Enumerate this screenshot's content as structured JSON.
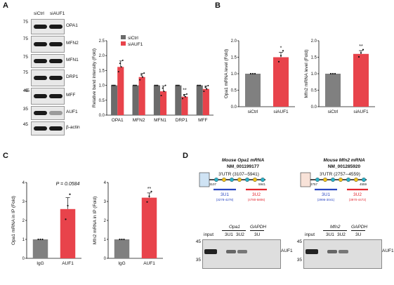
{
  "panels": {
    "A": "A",
    "B": "B",
    "C": "C",
    "D": "D"
  },
  "panelA": {
    "col_labels": [
      "siCtrl",
      "siAUF1"
    ],
    "blots": [
      {
        "mw": "75",
        "label": "OPA1"
      },
      {
        "mw": "75",
        "label": "MFN2"
      },
      {
        "mw": "75",
        "label": "MFN1"
      },
      {
        "mw": "75",
        "label": "DRP1"
      },
      {
        "mw": "45",
        "label": "MFF"
      },
      {
        "mw": "35",
        "label": "AUF1"
      },
      {
        "mw": "45",
        "label": "β-actin"
      }
    ],
    "extra_mw": [
      "45",
      "45"
    ]
  },
  "chart_data": [
    {
      "id": "A-bar",
      "type": "bar",
      "ylabel": "Relative band intensity (Fold)",
      "categories": [
        "OPA1",
        "MFN2",
        "MFN1",
        "DRP1",
        "MFF"
      ],
      "series": [
        {
          "name": "siCtrl",
          "values": [
            1.0,
            1.0,
            1.0,
            1.0,
            1.0
          ],
          "errors": [
            0,
            0,
            0,
            0,
            0
          ],
          "color": "#6b6b6b"
        },
        {
          "name": "siAUF1",
          "values": [
            1.62,
            1.28,
            0.8,
            0.62,
            0.88
          ],
          "errors": [
            0.2,
            0.12,
            0.18,
            0.08,
            0.1
          ],
          "color": "#e8434b"
        }
      ],
      "stars": [
        "",
        "",
        "",
        "**",
        ""
      ],
      "yticks": [
        "0.0",
        "0.5",
        "1.0",
        "1.5",
        "2.0",
        "2.5"
      ],
      "ylim": [
        0,
        2.5
      ]
    },
    {
      "id": "B-opa1",
      "type": "bar",
      "ylabel": "Opa1 mRNA level (Fold)",
      "categories": [
        "siCtrl",
        "siAUF1"
      ],
      "values": [
        1.0,
        1.5
      ],
      "errors": [
        0,
        0.15
      ],
      "stars": [
        "",
        "*"
      ],
      "colors": [
        "#808080",
        "#e8434b"
      ],
      "yticks": [
        "0.0",
        "0.5",
        "1.0",
        "1.5",
        "2.0"
      ],
      "ylim": [
        0,
        2.0
      ]
    },
    {
      "id": "B-mfn2",
      "type": "bar",
      "ylabel": "Mfn2 mRNA level (Fold)",
      "categories": [
        "siCtrl",
        "siAUF1"
      ],
      "values": [
        1.0,
        1.6
      ],
      "errors": [
        0,
        0.1
      ],
      "stars": [
        "",
        "**"
      ],
      "colors": [
        "#808080",
        "#e8434b"
      ],
      "yticks": [
        "0.0",
        "0.5",
        "1.0",
        "1.5",
        "2.0"
      ],
      "ylim": [
        0,
        2.0
      ]
    },
    {
      "id": "C-opa1",
      "type": "bar",
      "ylabel": "Opa1 mRNA in IP (Fold)",
      "categories": [
        "IgG",
        "AUF1"
      ],
      "values": [
        1.0,
        2.6
      ],
      "errors": [
        0,
        0.6
      ],
      "stars": [
        "",
        ""
      ],
      "pvalue": "P = 0.0584",
      "colors": [
        "#808080",
        "#e8434b"
      ],
      "yticks": [
        "0",
        "1",
        "2",
        "3",
        "4"
      ],
      "ylim": [
        0,
        4
      ]
    },
    {
      "id": "C-mfn2",
      "type": "bar",
      "ylabel": "Mfn2 mRNA in IP (Fold)",
      "categories": [
        "IgG",
        "AUF1"
      ],
      "values": [
        1.0,
        3.2
      ],
      "errors": [
        0,
        0.25
      ],
      "stars": [
        "",
        "**"
      ],
      "colors": [
        "#808080",
        "#e8434b"
      ],
      "yticks": [
        "0",
        "1",
        "2",
        "3",
        "4"
      ],
      "ylim": [
        0,
        4
      ]
    }
  ],
  "panelD": {
    "left": {
      "title1": "Mouse Opa1 mRNA",
      "title2": "NM_001199177",
      "utr": "3'UTR (3107─5941)",
      "start": "3107",
      "end": "5941",
      "u1": "3U1",
      "u1_range": "(3278-4278)",
      "u2": "3U2",
      "u2_range": "(4780-5806)",
      "lanes": [
        "input",
        "3U1",
        "3U2",
        "3U"
      ],
      "gene": "Opa1",
      "gapdh": "GAPDH",
      "mw": [
        "45",
        "35"
      ],
      "band": "AUF1"
    },
    "right": {
      "title1": "Mouse Mfn2 mRNA",
      "title2": "NM_001285920",
      "utr": "3'UTR (2757─4559)",
      "start": "2757",
      "end": "4559",
      "u1": "3U1",
      "u1_range": "(2996-3041)",
      "u2": "3U2",
      "u2_range": "(3970-4472)",
      "lanes": [
        "input",
        "3U1",
        "3U2",
        "3U"
      ],
      "gene": "Mfn2",
      "gapdh": "GAPDH",
      "mw": [
        "45",
        "35"
      ],
      "band": "AUF1"
    }
  }
}
